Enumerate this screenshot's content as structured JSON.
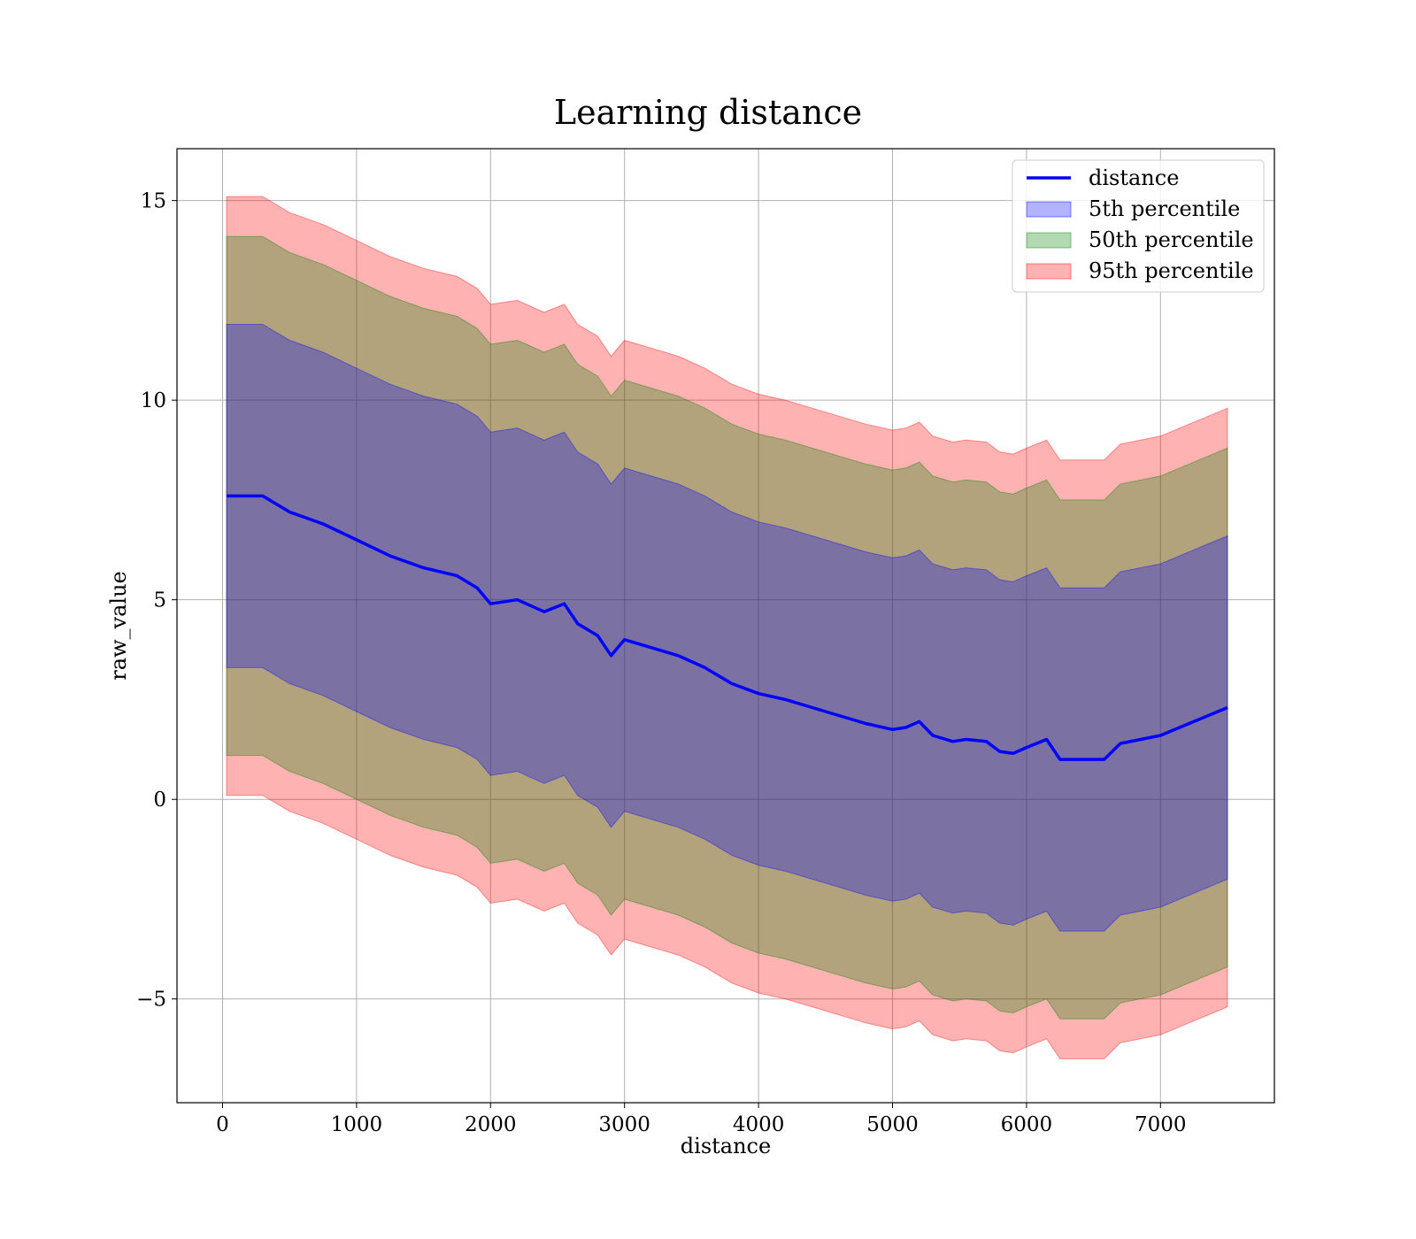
{
  "chart_data": {
    "type": "area",
    "title": "Learning distance",
    "xlabel": "distance",
    "ylabel": "raw_value",
    "xlim": [
      -340,
      7850
    ],
    "ylim": [
      -7.6,
      16.3
    ],
    "xticks": [
      0,
      1000,
      2000,
      3000,
      4000,
      5000,
      6000,
      7000
    ],
    "xtick_labels": [
      "0",
      "1000",
      "2000",
      "3000",
      "4000",
      "5000",
      "6000",
      "7000"
    ],
    "yticks": [
      -5,
      0,
      5,
      10,
      15
    ],
    "ytick_labels": [
      "−5",
      "0",
      "5",
      "10",
      "15"
    ],
    "grid": true,
    "legend_position": "top-right",
    "x": [
      30,
      300,
      500,
      750,
      1000,
      1250,
      1500,
      1750,
      1900,
      2000,
      2200,
      2400,
      2550,
      2650,
      2800,
      2900,
      3000,
      3200,
      3400,
      3600,
      3800,
      4000,
      4200,
      4400,
      4600,
      4800,
      5000,
      5100,
      5200,
      5300,
      5450,
      5550,
      5700,
      5800,
      5900,
      6000,
      6150,
      6250,
      6400,
      6580,
      6700,
      7000,
      7500
    ],
    "series": [
      {
        "name": "distance",
        "kind": "line",
        "color": "#0000ff",
        "values": [
          7.6,
          7.6,
          7.2,
          6.9,
          6.5,
          6.1,
          5.8,
          5.6,
          5.3,
          4.9,
          5.0,
          4.7,
          4.9,
          4.4,
          4.1,
          3.6,
          4.0,
          3.8,
          3.6,
          3.3,
          2.9,
          2.65,
          2.5,
          2.3,
          2.1,
          1.9,
          1.75,
          1.8,
          1.95,
          1.6,
          1.45,
          1.5,
          1.45,
          1.2,
          1.15,
          1.3,
          1.5,
          1.0,
          1.0,
          1.0,
          1.4,
          1.6,
          2.3
        ]
      },
      {
        "name": "5th percentile",
        "kind": "band",
        "color": "#0000ff",
        "opacity": 0.3,
        "lower": [
          3.3,
          3.3,
          2.9,
          2.6,
          2.2,
          1.8,
          1.5,
          1.3,
          1.0,
          0.6,
          0.7,
          0.4,
          0.6,
          0.1,
          -0.2,
          -0.7,
          -0.3,
          -0.5,
          -0.7,
          -1.0,
          -1.4,
          -1.65,
          -1.8,
          -2.0,
          -2.2,
          -2.4,
          -2.55,
          -2.5,
          -2.35,
          -2.7,
          -2.85,
          -2.8,
          -2.85,
          -3.1,
          -3.15,
          -3.0,
          -2.8,
          -3.3,
          -3.3,
          -3.3,
          -2.9,
          -2.7,
          -2.0
        ],
        "upper": [
          11.9,
          11.9,
          11.5,
          11.2,
          10.8,
          10.4,
          10.1,
          9.9,
          9.6,
          9.2,
          9.3,
          9.0,
          9.2,
          8.7,
          8.4,
          7.9,
          8.3,
          8.1,
          7.9,
          7.6,
          7.2,
          6.95,
          6.8,
          6.6,
          6.4,
          6.2,
          6.05,
          6.1,
          6.25,
          5.9,
          5.75,
          5.8,
          5.75,
          5.5,
          5.45,
          5.6,
          5.8,
          5.3,
          5.3,
          5.3,
          5.7,
          5.9,
          6.6
        ]
      },
      {
        "name": "50th percentile",
        "kind": "band",
        "color": "#008000",
        "opacity": 0.3,
        "lower": [
          1.1,
          1.1,
          0.7,
          0.4,
          0.0,
          -0.4,
          -0.7,
          -0.9,
          -1.2,
          -1.6,
          -1.5,
          -1.8,
          -1.6,
          -2.1,
          -2.4,
          -2.9,
          -2.5,
          -2.7,
          -2.9,
          -3.2,
          -3.6,
          -3.85,
          -4.0,
          -4.2,
          -4.4,
          -4.6,
          -4.75,
          -4.7,
          -4.55,
          -4.9,
          -5.05,
          -5.0,
          -5.05,
          -5.3,
          -5.35,
          -5.2,
          -5.0,
          -5.5,
          -5.5,
          -5.5,
          -5.1,
          -4.9,
          -4.2
        ],
        "upper": [
          14.1,
          14.1,
          13.7,
          13.4,
          13.0,
          12.6,
          12.3,
          12.1,
          11.8,
          11.4,
          11.5,
          11.2,
          11.4,
          10.9,
          10.6,
          10.1,
          10.5,
          10.3,
          10.1,
          9.8,
          9.4,
          9.15,
          9.0,
          8.8,
          8.6,
          8.4,
          8.25,
          8.3,
          8.45,
          8.1,
          7.95,
          8.0,
          7.95,
          7.7,
          7.65,
          7.8,
          8.0,
          7.5,
          7.5,
          7.5,
          7.9,
          8.1,
          8.8
        ]
      },
      {
        "name": "95th percentile",
        "kind": "band",
        "color": "#ff0000",
        "opacity": 0.3,
        "lower": [
          0.1,
          0.1,
          -0.3,
          -0.6,
          -1.0,
          -1.4,
          -1.7,
          -1.9,
          -2.2,
          -2.6,
          -2.5,
          -2.8,
          -2.6,
          -3.1,
          -3.4,
          -3.9,
          -3.5,
          -3.7,
          -3.9,
          -4.2,
          -4.6,
          -4.85,
          -5.0,
          -5.2,
          -5.4,
          -5.6,
          -5.75,
          -5.7,
          -5.55,
          -5.9,
          -6.05,
          -6.0,
          -6.05,
          -6.3,
          -6.35,
          -6.2,
          -6.0,
          -6.5,
          -6.5,
          -6.5,
          -6.1,
          -5.9,
          -5.2
        ],
        "upper": [
          15.1,
          15.1,
          14.7,
          14.4,
          14.0,
          13.6,
          13.3,
          13.1,
          12.8,
          12.4,
          12.5,
          12.2,
          12.4,
          11.9,
          11.6,
          11.1,
          11.5,
          11.3,
          11.1,
          10.8,
          10.4,
          10.15,
          10.0,
          9.8,
          9.6,
          9.4,
          9.25,
          9.3,
          9.45,
          9.1,
          8.95,
          9.0,
          8.95,
          8.7,
          8.65,
          8.8,
          9.0,
          8.5,
          8.5,
          8.5,
          8.9,
          9.1,
          9.8
        ]
      }
    ],
    "legend": [
      "distance",
      "5th percentile",
      "50th percentile",
      "95th percentile"
    ]
  }
}
